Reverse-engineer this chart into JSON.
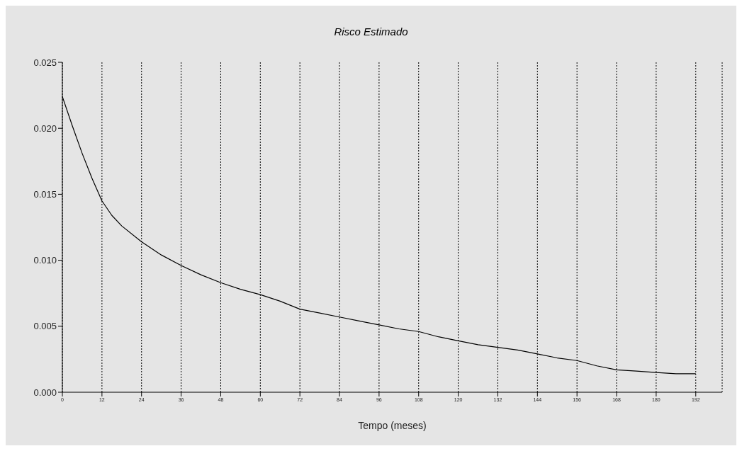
{
  "chart_data": {
    "type": "line",
    "title": "Risco Estimado",
    "xlabel": "Tempo (meses)",
    "x": [
      0,
      3,
      6,
      9,
      12,
      15,
      18,
      24,
      30,
      36,
      42,
      48,
      54,
      60,
      66,
      72,
      78,
      84,
      90,
      96,
      102,
      108,
      114,
      120,
      126,
      132,
      138,
      144,
      150,
      156,
      162,
      168,
      174,
      180,
      186,
      192
    ],
    "series": [
      {
        "color": "#000000",
        "values": [
          0.0224,
          0.0202,
          0.0181,
          0.0162,
          0.0145,
          0.0134,
          0.0126,
          0.0114,
          0.0104,
          0.0096,
          0.0089,
          0.0083,
          0.0078,
          0.0074,
          0.0069,
          0.0063,
          0.006,
          0.0057,
          0.0054,
          0.0051,
          0.0048,
          0.0046,
          0.0042,
          0.0039,
          0.0036,
          0.0034,
          0.0032,
          0.0029,
          0.0026,
          0.0024,
          0.002,
          0.0017,
          0.0016,
          0.0015,
          0.0014,
          0.0014
        ]
      }
    ],
    "xlim": [
      0,
      200
    ],
    "xticks": [
      0,
      12,
      24,
      36,
      48,
      60,
      72,
      84,
      96,
      108,
      120,
      132,
      144,
      156,
      168,
      180,
      192
    ],
    "ylim": [
      0,
      0.025
    ],
    "yticks": [
      {
        "value": 0,
        "label": "0.000"
      },
      {
        "value": 0.005,
        "label": "0.005"
      },
      {
        "value": 0.01,
        "label": "0.010"
      },
      {
        "value": 0.015,
        "label": "0.015"
      },
      {
        "value": 0.02,
        "label": "0.020"
      },
      {
        "value": 0.025,
        "label": "0.025"
      }
    ],
    "grid": "x",
    "marker": "none",
    "line_style": "solid"
  }
}
